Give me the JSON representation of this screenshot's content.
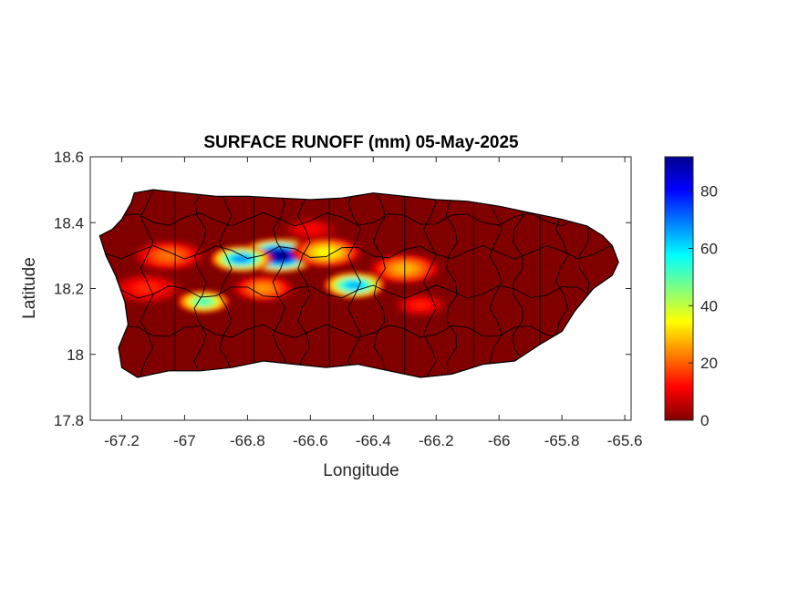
{
  "chart_data": {
    "type": "heatmap",
    "title": "SURFACE RUNOFF (mm) 05-May-2025",
    "xlabel": "Longitude",
    "ylabel": "Latitude",
    "xlim": [
      -67.3,
      -65.58
    ],
    "ylim": [
      17.8,
      18.6
    ],
    "x_ticks": [
      -67.2,
      -67,
      -66.8,
      -66.6,
      -66.4,
      -66.2,
      -66,
      -65.8,
      -65.6
    ],
    "y_ticks": [
      17.8,
      18,
      18.2,
      18.4,
      18.6
    ],
    "colorbar": {
      "colormap": "jet-reversed (dark red = 0, dark blue = max)",
      "range": [
        0,
        92
      ],
      "ticks": [
        0,
        20,
        40,
        60,
        80
      ]
    },
    "field": {
      "background_value": 0,
      "land_outline_lonlat": [
        [
          -67.27,
          18.36
        ],
        [
          -67.23,
          18.38
        ],
        [
          -67.2,
          18.41
        ],
        [
          -67.17,
          18.46
        ],
        [
          -67.16,
          18.49
        ],
        [
          -67.1,
          18.5
        ],
        [
          -67.0,
          18.49
        ],
        [
          -66.9,
          18.48
        ],
        [
          -66.8,
          18.48
        ],
        [
          -66.7,
          18.475
        ],
        [
          -66.6,
          18.47
        ],
        [
          -66.5,
          18.475
        ],
        [
          -66.4,
          18.49
        ],
        [
          -66.3,
          18.48
        ],
        [
          -66.2,
          18.47
        ],
        [
          -66.1,
          18.465
        ],
        [
          -66.0,
          18.45
        ],
        [
          -65.9,
          18.43
        ],
        [
          -65.8,
          18.41
        ],
        [
          -65.72,
          18.39
        ],
        [
          -65.67,
          18.36
        ],
        [
          -65.64,
          18.33
        ],
        [
          -65.62,
          18.28
        ],
        [
          -65.64,
          18.24
        ],
        [
          -65.7,
          18.2
        ],
        [
          -65.76,
          18.13
        ],
        [
          -65.8,
          18.07
        ],
        [
          -65.87,
          18.03
        ],
        [
          -65.95,
          17.98
        ],
        [
          -66.05,
          17.97
        ],
        [
          -66.15,
          17.94
        ],
        [
          -66.25,
          17.93
        ],
        [
          -66.35,
          17.95
        ],
        [
          -66.45,
          17.97
        ],
        [
          -66.55,
          17.96
        ],
        [
          -66.65,
          17.97
        ],
        [
          -66.75,
          17.98
        ],
        [
          -66.85,
          17.96
        ],
        [
          -66.95,
          17.95
        ],
        [
          -67.05,
          17.95
        ],
        [
          -67.15,
          17.93
        ],
        [
          -67.2,
          17.96
        ],
        [
          -67.21,
          18.02
        ],
        [
          -67.18,
          18.09
        ],
        [
          -67.19,
          18.16
        ],
        [
          -67.22,
          18.24
        ],
        [
          -67.25,
          18.3
        ]
      ],
      "hotspots": [
        {
          "lon": -66.7,
          "lat": 18.3,
          "peak": 92,
          "radius_deg": 0.09
        },
        {
          "lon": -66.82,
          "lat": 18.29,
          "peak": 68,
          "radius_deg": 0.07
        },
        {
          "lon": -66.46,
          "lat": 18.21,
          "peak": 65,
          "radius_deg": 0.07
        },
        {
          "lon": -66.94,
          "lat": 18.16,
          "peak": 52,
          "radius_deg": 0.06
        },
        {
          "lon": -66.55,
          "lat": 18.31,
          "peak": 35,
          "radius_deg": 0.08
        },
        {
          "lon": -66.3,
          "lat": 18.26,
          "peak": 28,
          "radius_deg": 0.08
        },
        {
          "lon": -67.05,
          "lat": 18.3,
          "peak": 22,
          "radius_deg": 0.08
        },
        {
          "lon": -66.75,
          "lat": 18.2,
          "peak": 25,
          "radius_deg": 0.07
        },
        {
          "lon": -67.12,
          "lat": 18.2,
          "peak": 15,
          "radius_deg": 0.08
        },
        {
          "lon": -66.25,
          "lat": 18.15,
          "peak": 14,
          "radius_deg": 0.06
        },
        {
          "lon": -66.6,
          "lat": 18.38,
          "peak": 12,
          "radius_deg": 0.06
        }
      ]
    }
  },
  "colors": {
    "background": "#ffffff",
    "axes_frame": "#262626",
    "boundaries": "#000000"
  }
}
